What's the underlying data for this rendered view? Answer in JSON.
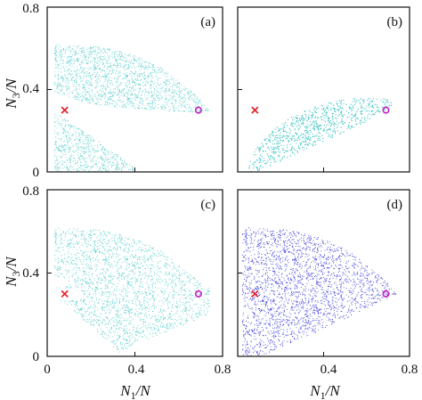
{
  "chart_data": {
    "type": "scatter",
    "xlabel": "N1/N",
    "ylabel": "N3/N",
    "xlim": [
      0,
      0.8
    ],
    "ylim": [
      0,
      0.8
    ],
    "x_ticks": [
      "0",
      "0.4",
      "0.8"
    ],
    "y_ticks": [
      "0",
      "0.4",
      "0.8"
    ],
    "grid": false,
    "legend": "none",
    "markers": {
      "cross": {
        "x": 0.08,
        "y": 0.3,
        "color": "#e0202a",
        "symbol": "x"
      },
      "circle": {
        "x": 0.69,
        "y": 0.3,
        "color": "#c020c0",
        "symbol": "o"
      }
    },
    "panels": [
      {
        "label": "(a)",
        "color": "#3cc2c2",
        "regions": [
          "upper-lobe",
          "lower-lobe"
        ]
      },
      {
        "label": "(b)",
        "color": "#3cc2c2",
        "regions": [
          "right-lobe"
        ]
      },
      {
        "label": "(c)",
        "color": "#3cc2c2",
        "regions": [
          "upper-lobe",
          "crossing-lobe"
        ]
      },
      {
        "label": "(d)",
        "color": "#2b2bd6",
        "regions": [
          "full-triangle"
        ]
      }
    ]
  }
}
